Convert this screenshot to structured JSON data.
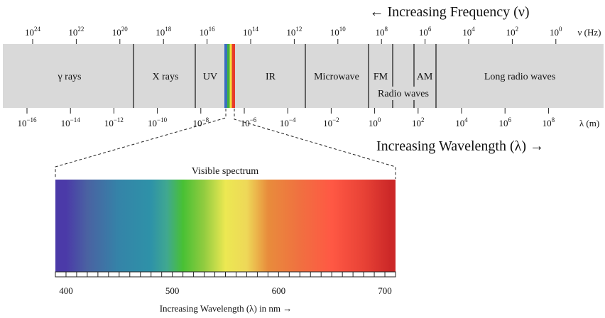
{
  "frequency_title": "← Increasing Frequency (ν)",
  "wavelength_title": "Increasing Wavelength (λ) →",
  "frequency_unit": "ν (Hz)",
  "wavelength_unit": "λ (m)",
  "frequency_exponents": [
    "24",
    "22",
    "20",
    "18",
    "16",
    "14",
    "12",
    "10",
    "8",
    "6",
    "4",
    "2",
    "0"
  ],
  "wavelength_exponents": [
    "−16",
    "−14",
    "−12",
    "−10",
    "−8",
    "−6",
    "−4",
    "−2",
    "0",
    "2",
    "4",
    "6",
    "8"
  ],
  "regions": {
    "gamma": "γ rays",
    "xray": "X rays",
    "uv": "UV",
    "ir": "IR",
    "microwave": "Microwave",
    "fm": "FM",
    "am": "AM",
    "radio": "Radio waves",
    "long_radio": "Long radio waves"
  },
  "visible": {
    "title": "Visible spectrum",
    "axis_label": "Increasing Wavelength (λ) in nm →",
    "range_nm": [
      390,
      710
    ],
    "tick_step_nm": 10,
    "tick_labels": [
      "400",
      "500",
      "600",
      "700"
    ],
    "colors": {
      "400": "#4b3aa8",
      "420": "#4a62a2",
      "450": "#3484a8",
      "480": "#2e92a8",
      "495": "#40a890",
      "510": "#48c034",
      "530": "#92cc40",
      "550": "#ece852",
      "570": "#eed858",
      "590": "#e88c3c",
      "620": "#f07040",
      "650": "#ff5844",
      "680": "#e84236",
      "705": "#cc2828"
    }
  },
  "colors": {
    "band": "#d9d9d9",
    "base": "base"
  }
}
